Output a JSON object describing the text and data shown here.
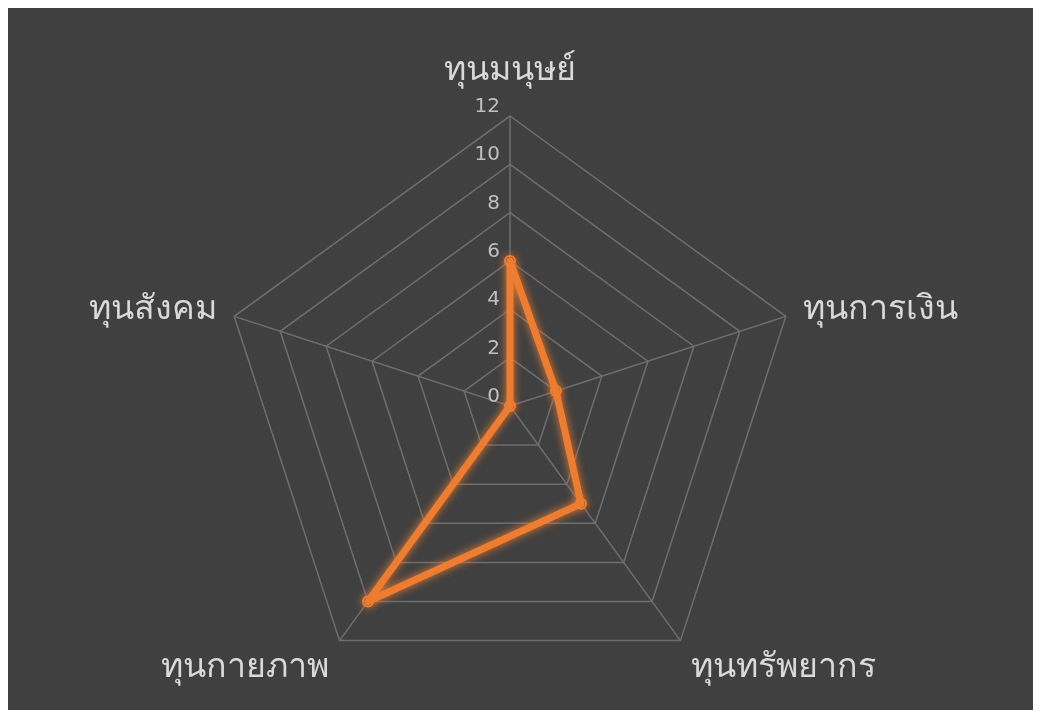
{
  "chart_data": {
    "type": "radar",
    "categories": [
      "ทุนมนุษย์",
      "ทุนการเงิน",
      "ทุนทรัพยากร",
      "ทุนกายภาพ",
      "ทุนสังคม"
    ],
    "series": [
      {
        "color": "#ed7d31",
        "values": [
          6,
          2,
          5,
          10,
          0
        ]
      }
    ],
    "ylim": [
      0,
      12
    ],
    "yticks": [
      0,
      2,
      4,
      6,
      8,
      10,
      12
    ],
    "grid": true,
    "marker": "circle",
    "legend": false
  }
}
